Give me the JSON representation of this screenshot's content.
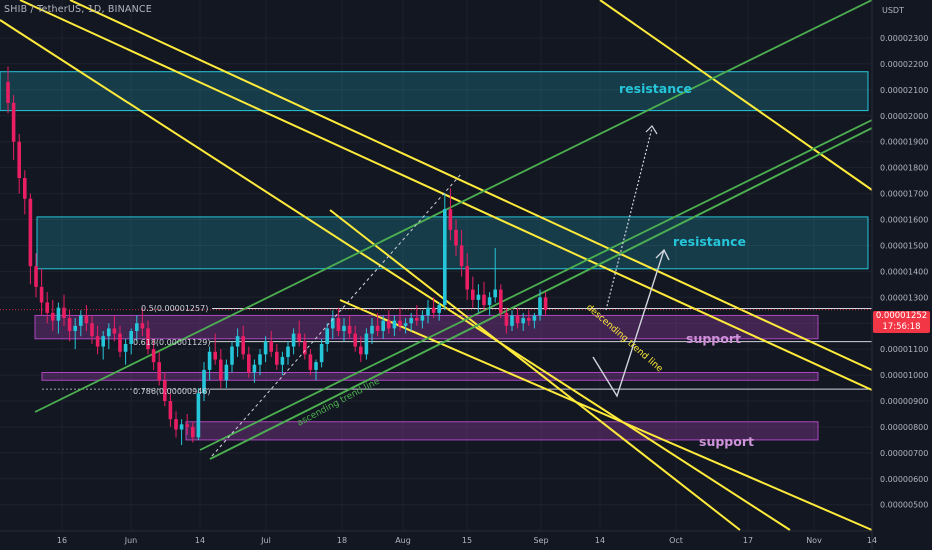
{
  "header": {
    "title": "SHIB / TetherUS, 1D, BINANCE"
  },
  "axis": {
    "currency": "USDT",
    "y_ticks": [
      "0.00002300",
      "0.00002200",
      "0.00002100",
      "0.00002000",
      "0.00001900",
      "0.00001800",
      "0.00001700",
      "0.00001600",
      "0.00001500",
      "0.00001400",
      "0.00001300",
      "0.00001200",
      "0.00001100",
      "0.00001000",
      "0.00000900",
      "0.00000800",
      "0.00000700",
      "0.00000600",
      "0.00000500"
    ],
    "y_tick_values": [
      2300,
      2200,
      2100,
      2000,
      1900,
      1800,
      1700,
      1600,
      1500,
      1400,
      1300,
      1200,
      1100,
      1000,
      900,
      800,
      700,
      600,
      500
    ],
    "x_ticks": [
      "16",
      "Jun",
      "14",
      "Jul",
      "18",
      "Aug",
      "15",
      "Sep",
      "14",
      "Oct",
      "17",
      "Nov",
      "14"
    ]
  },
  "last_price": {
    "value": "0.00001252",
    "countdown": "17:56:18"
  },
  "annotations": {
    "resistance_label": "resistance",
    "support_label": "support",
    "fib_05": "0.5(0.00001257)",
    "fib_0618": "0.618(0.00001129)",
    "fib_0786": "0.786(0.00000946)",
    "descending": "descending trend line",
    "ascending": "ascending trend line"
  },
  "colors": {
    "background": "#131722",
    "up": "#26c6da",
    "down": "#e91e63",
    "resistance": "#26c6da",
    "support": "#ab47bc",
    "channel_yellow": "#ffeb3b",
    "channel_green": "#4caf50",
    "price_badge": "#f23645"
  },
  "chart_data": {
    "type": "candlestick",
    "title": "SHIB / TetherUS, 1D, BINANCE",
    "ylabel": "USDT",
    "ylim": [
      4.8e-06,
      2.36e-05
    ],
    "x_range": [
      "May 11",
      "Nov 14"
    ],
    "y_scale": "price x 1e-9",
    "last_price": 1252,
    "resistance_zones": [
      [
        2020,
        2170
      ],
      [
        1410,
        1610
      ]
    ],
    "support_zones": [
      [
        1140,
        1230
      ],
      [
        980,
        1010
      ],
      [
        750,
        820
      ]
    ],
    "fibonacci_levels": [
      {
        "level": "0.5",
        "value": 1257
      },
      {
        "level": "0.618",
        "value": 1129
      },
      {
        "level": "0.786",
        "value": 946
      }
    ],
    "candles": [
      [
        2130,
        2190,
        2010,
        2050
      ],
      [
        2050,
        2080,
        1830,
        1900
      ],
      [
        1900,
        1930,
        1700,
        1760
      ],
      [
        1760,
        1790,
        1620,
        1680
      ],
      [
        1680,
        1700,
        1350,
        1420
      ],
      [
        1420,
        1470,
        1300,
        1340
      ],
      [
        1340,
        1410,
        1230,
        1280
      ],
      [
        1280,
        1320,
        1200,
        1240
      ],
      [
        1240,
        1290,
        1170,
        1210
      ],
      [
        1210,
        1280,
        1160,
        1260
      ],
      [
        1260,
        1310,
        1190,
        1220
      ],
      [
        1220,
        1250,
        1130,
        1170
      ],
      [
        1170,
        1220,
        1100,
        1190
      ],
      [
        1190,
        1250,
        1150,
        1230
      ],
      [
        1230,
        1270,
        1170,
        1200
      ],
      [
        1200,
        1230,
        1120,
        1150
      ],
      [
        1150,
        1190,
        1080,
        1110
      ],
      [
        1110,
        1170,
        1060,
        1150
      ],
      [
        1150,
        1200,
        1100,
        1180
      ],
      [
        1180,
        1230,
        1130,
        1160
      ],
      [
        1160,
        1190,
        1070,
        1090
      ],
      [
        1090,
        1140,
        1040,
        1120
      ],
      [
        1120,
        1180,
        1080,
        1170
      ],
      [
        1170,
        1230,
        1130,
        1200
      ],
      [
        1200,
        1260,
        1150,
        1180
      ],
      [
        1180,
        1210,
        1080,
        1100
      ],
      [
        1100,
        1140,
        1020,
        1050
      ],
      [
        1050,
        1090,
        960,
        980
      ],
      [
        980,
        1010,
        880,
        900
      ],
      [
        900,
        930,
        800,
        830
      ],
      [
        830,
        860,
        760,
        790
      ],
      [
        790,
        830,
        730,
        810
      ],
      [
        810,
        850,
        770,
        800
      ],
      [
        800,
        820,
        740,
        760
      ],
      [
        760,
        950,
        750,
        930
      ],
      [
        930,
        1050,
        900,
        1020
      ],
      [
        1020,
        1110,
        980,
        1090
      ],
      [
        1090,
        1160,
        1040,
        1060
      ],
      [
        1060,
        1100,
        950,
        980
      ],
      [
        980,
        1060,
        950,
        1040
      ],
      [
        1040,
        1130,
        1010,
        1110
      ],
      [
        1110,
        1180,
        1070,
        1150
      ],
      [
        1150,
        1190,
        1060,
        1080
      ],
      [
        1080,
        1110,
        990,
        1010
      ],
      [
        1010,
        1060,
        970,
        1040
      ],
      [
        1040,
        1100,
        1000,
        1080
      ],
      [
        1080,
        1150,
        1050,
        1130
      ],
      [
        1130,
        1170,
        1070,
        1090
      ],
      [
        1090,
        1120,
        1020,
        1040
      ],
      [
        1040,
        1090,
        1000,
        1070
      ],
      [
        1070,
        1130,
        1040,
        1110
      ],
      [
        1110,
        1180,
        1080,
        1160
      ],
      [
        1160,
        1210,
        1110,
        1130
      ],
      [
        1130,
        1160,
        1060,
        1080
      ],
      [
        1080,
        1100,
        1000,
        1020
      ],
      [
        1020,
        1060,
        980,
        1050
      ],
      [
        1050,
        1140,
        1030,
        1120
      ],
      [
        1120,
        1200,
        1090,
        1180
      ],
      [
        1180,
        1250,
        1140,
        1220
      ],
      [
        1220,
        1260,
        1150,
        1170
      ],
      [
        1170,
        1220,
        1130,
        1190
      ],
      [
        1190,
        1230,
        1140,
        1160
      ],
      [
        1160,
        1190,
        1090,
        1110
      ],
      [
        1110,
        1150,
        1050,
        1080
      ],
      [
        1080,
        1180,
        1060,
        1160
      ],
      [
        1160,
        1220,
        1120,
        1190
      ],
      [
        1190,
        1240,
        1150,
        1170
      ],
      [
        1170,
        1230,
        1140,
        1210
      ],
      [
        1210,
        1250,
        1160,
        1180
      ],
      [
        1180,
        1230,
        1150,
        1210
      ],
      [
        1210,
        1260,
        1170,
        1190
      ],
      [
        1190,
        1220,
        1160,
        1200
      ],
      [
        1200,
        1240,
        1170,
        1220
      ],
      [
        1220,
        1270,
        1190,
        1210
      ],
      [
        1210,
        1250,
        1180,
        1230
      ],
      [
        1230,
        1290,
        1200,
        1260
      ],
      [
        1260,
        1300,
        1220,
        1240
      ],
      [
        1240,
        1280,
        1210,
        1270
      ],
      [
        1270,
        1700,
        1250,
        1640
      ],
      [
        1640,
        1720,
        1520,
        1560
      ],
      [
        1560,
        1600,
        1460,
        1500
      ],
      [
        1500,
        1560,
        1380,
        1420
      ],
      [
        1420,
        1470,
        1290,
        1330
      ],
      [
        1330,
        1380,
        1260,
        1290
      ],
      [
        1290,
        1350,
        1240,
        1310
      ],
      [
        1310,
        1360,
        1250,
        1270
      ],
      [
        1270,
        1320,
        1230,
        1300
      ],
      [
        1300,
        1490,
        1280,
        1330
      ],
      [
        1330,
        1350,
        1220,
        1240
      ],
      [
        1240,
        1260,
        1160,
        1190
      ],
      [
        1190,
        1250,
        1170,
        1230
      ],
      [
        1230,
        1260,
        1180,
        1200
      ],
      [
        1200,
        1240,
        1170,
        1220
      ],
      [
        1220,
        1250,
        1190,
        1210
      ],
      [
        1210,
        1240,
        1180,
        1230
      ],
      [
        1230,
        1330,
        1210,
        1300
      ],
      [
        1300,
        1320,
        1230,
        1252
      ]
    ]
  }
}
